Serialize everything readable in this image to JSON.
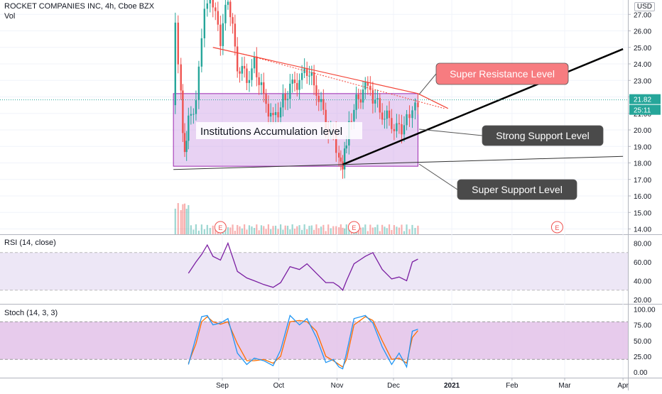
{
  "header": {
    "title": "ROCKET COMPANIES INC, 4h, Cboe BZX",
    "vol_label": "Vol",
    "currency": "USD"
  },
  "rsi": {
    "label": "RSI (14, close)",
    "ticks": [
      "80.00",
      "60.00",
      "40.00",
      "20.00"
    ]
  },
  "stoch": {
    "label": "Stoch (14, 3, 3)",
    "ticks": [
      "100.00",
      "75.00",
      "50.00",
      "25.00",
      "0.00"
    ]
  },
  "price_axis": {
    "ticks": [
      "27.00",
      "26.00",
      "25.00",
      "24.00",
      "23.00",
      "22.00",
      "21.00",
      "20.00",
      "19.00",
      "18.00",
      "17.00",
      "16.00",
      "15.00",
      "14.00"
    ],
    "last_price": "21.82",
    "countdown": "25:11"
  },
  "x_axis": {
    "labels": [
      "Sep",
      "Oct",
      "Nov",
      "Dec",
      "2021",
      "Feb",
      "Mar",
      "Apr"
    ]
  },
  "annotations": {
    "super_resistance": "Super Resistance Level",
    "strong_support": "Strong Support Level",
    "super_support": "Super Support Level",
    "accumulation": "Institutions Accumulation level",
    "earnings_marker": "E"
  },
  "colors": {
    "up": "#26a69a",
    "down": "#ef5350",
    "rsi_line": "#7b1fa2",
    "rsi_band": "#ede7f6",
    "stoch_k": "#2196f3",
    "stoch_d": "#ff6d00",
    "stoch_band": "#e1bee7",
    "accumulation_box": "#d1a6e8",
    "resistance": "#f44336",
    "callout_red": "#f77c80",
    "callout_dark": "#4a4a4a",
    "last_price_bg": "#26a69a"
  },
  "chart_data": [
    {
      "type": "candlestick",
      "title": "ROCKET COMPANIES INC, 4h, Cboe BZX",
      "x_labels": [
        "Sep",
        "Oct",
        "Nov",
        "Dec",
        "2021",
        "Feb",
        "Mar",
        "Apr"
      ],
      "y_ticks": [
        14,
        15,
        16,
        17,
        18,
        19,
        20,
        21,
        22,
        23,
        24,
        25,
        26,
        27
      ],
      "last_price": 21.82,
      "close_path": [
        {
          "x": "Aug 6",
          "y": 21.5
        },
        {
          "x": "Aug 7",
          "y": 26.5
        },
        {
          "x": "Aug 10",
          "y": 22.0
        },
        {
          "x": "Aug 12",
          "y": 18.5
        },
        {
          "x": "Aug 14",
          "y": 21.0
        },
        {
          "x": "Aug 18",
          "y": 21.5
        },
        {
          "x": "Aug 21",
          "y": 26.0
        },
        {
          "x": "Aug 24",
          "y": 28.0
        },
        {
          "x": "Aug 27",
          "y": 27.5
        },
        {
          "x": "Aug 31",
          "y": 25.5
        },
        {
          "x": "Sep 4",
          "y": 28.0
        },
        {
          "x": "Sep 9",
          "y": 24.0
        },
        {
          "x": "Sep 14",
          "y": 23.2
        },
        {
          "x": "Sep 18",
          "y": 24.0
        },
        {
          "x": "Sep 23",
          "y": 22.0
        },
        {
          "x": "Sep 28",
          "y": 20.5
        },
        {
          "x": "Oct 2",
          "y": 21.5
        },
        {
          "x": "Oct 7",
          "y": 22.5
        },
        {
          "x": "Oct 12",
          "y": 23.0
        },
        {
          "x": "Oct 16",
          "y": 23.6
        },
        {
          "x": "Oct 21",
          "y": 22.5
        },
        {
          "x": "Oct 26",
          "y": 20.5
        },
        {
          "x": "Oct 30",
          "y": 19.5
        },
        {
          "x": "Nov 2",
          "y": 18.5
        },
        {
          "x": "Nov 4",
          "y": 18.0
        },
        {
          "x": "Nov 6",
          "y": 19.5
        },
        {
          "x": "Nov 10",
          "y": 21.5
        },
        {
          "x": "Nov 16",
          "y": 22.5
        },
        {
          "x": "Nov 20",
          "y": 22.0
        },
        {
          "x": "Nov 25",
          "y": 21.0
        },
        {
          "x": "Nov 30",
          "y": 20.5
        },
        {
          "x": "Dec 4",
          "y": 20.0
        },
        {
          "x": "Dec 8",
          "y": 20.5
        },
        {
          "x": "Dec 11",
          "y": 21.5
        },
        {
          "x": "Dec 14",
          "y": 21.82
        }
      ],
      "annotations": [
        {
          "label": "Super Resistance Level",
          "type": "descending trendline",
          "from": {
            "x": "Aug 27",
            "y": 25.0
          },
          "to": {
            "x": "Dec 14",
            "y": 22.2
          }
        },
        {
          "label": "Strong Support Level",
          "type": "ascending trendline",
          "from": {
            "x": "Nov 4",
            "y": 17.9
          },
          "to": {
            "x": "Apr",
            "y": 24.9
          }
        },
        {
          "label": "Super Support Level",
          "type": "trendline",
          "from": {
            "x": "Aug 6",
            "y": 17.6
          },
          "to": {
            "x": "Apr",
            "y": 18.4
          }
        },
        {
          "label": "Institutions Accumulation level",
          "type": "box",
          "x_range": [
            "Aug 6",
            "Dec 14"
          ],
          "y_range": [
            17.8,
            22.2
          ]
        }
      ],
      "earnings_markers": [
        "Aug 31",
        "Nov 10",
        "Feb 25"
      ]
    },
    {
      "type": "line",
      "title": "RSI (14, close)",
      "y_ticks": [
        20,
        40,
        60,
        80
      ],
      "bands": [
        30,
        70
      ],
      "series": [
        {
          "name": "RSI (14, close)",
          "points": [
            {
              "x": "Aug 14",
              "y": 48
            },
            {
              "x": "Aug 18",
              "y": 60
            },
            {
              "x": "Aug 21",
              "y": 68
            },
            {
              "x": "Aug 24",
              "y": 78
            },
            {
              "x": "Aug 27",
              "y": 66
            },
            {
              "x": "Aug 31",
              "y": 62
            },
            {
              "x": "Sep 4",
              "y": 80
            },
            {
              "x": "Sep 9",
              "y": 50
            },
            {
              "x": "Sep 14",
              "y": 43
            },
            {
              "x": "Sep 18",
              "y": 40
            },
            {
              "x": "Sep 23",
              "y": 36
            },
            {
              "x": "Sep 28",
              "y": 33
            },
            {
              "x": "Oct 2",
              "y": 38
            },
            {
              "x": "Oct 7",
              "y": 55
            },
            {
              "x": "Oct 12",
              "y": 52
            },
            {
              "x": "Oct 16",
              "y": 58
            },
            {
              "x": "Oct 21",
              "y": 48
            },
            {
              "x": "Oct 26",
              "y": 38
            },
            {
              "x": "Oct 30",
              "y": 38
            },
            {
              "x": "Nov 2",
              "y": 34
            },
            {
              "x": "Nov 4",
              "y": 30
            },
            {
              "x": "Nov 6",
              "y": 40
            },
            {
              "x": "Nov 10",
              "y": 58
            },
            {
              "x": "Nov 16",
              "y": 66
            },
            {
              "x": "Nov 20",
              "y": 70
            },
            {
              "x": "Nov 25",
              "y": 52
            },
            {
              "x": "Nov 30",
              "y": 42
            },
            {
              "x": "Dec 4",
              "y": 44
            },
            {
              "x": "Dec 8",
              "y": 40
            },
            {
              "x": "Dec 11",
              "y": 60
            },
            {
              "x": "Dec 14",
              "y": 63
            }
          ]
        }
      ]
    },
    {
      "type": "line",
      "title": "Stoch (14, 3, 3)",
      "y_ticks": [
        0,
        25,
        50,
        75,
        100
      ],
      "bands": [
        20,
        80
      ],
      "series": [
        {
          "name": "%K",
          "points": [
            {
              "x": "Aug 14",
              "y": 12
            },
            {
              "x": "Aug 18",
              "y": 55
            },
            {
              "x": "Aug 21",
              "y": 88
            },
            {
              "x": "Aug 24",
              "y": 90
            },
            {
              "x": "Aug 27",
              "y": 75
            },
            {
              "x": "Aug 31",
              "y": 78
            },
            {
              "x": "Sep 4",
              "y": 85
            },
            {
              "x": "Sep 9",
              "y": 30
            },
            {
              "x": "Sep 14",
              "y": 12
            },
            {
              "x": "Sep 18",
              "y": 22
            },
            {
              "x": "Sep 23",
              "y": 18
            },
            {
              "x": "Sep 28",
              "y": 10
            },
            {
              "x": "Oct 2",
              "y": 35
            },
            {
              "x": "Oct 7",
              "y": 90
            },
            {
              "x": "Oct 12",
              "y": 75
            },
            {
              "x": "Oct 16",
              "y": 85
            },
            {
              "x": "Oct 21",
              "y": 55
            },
            {
              "x": "Oct 26",
              "y": 15
            },
            {
              "x": "Oct 30",
              "y": 20
            },
            {
              "x": "Nov 2",
              "y": 8
            },
            {
              "x": "Nov 4",
              "y": 5
            },
            {
              "x": "Nov 6",
              "y": 30
            },
            {
              "x": "Nov 10",
              "y": 85
            },
            {
              "x": "Nov 16",
              "y": 90
            },
            {
              "x": "Nov 20",
              "y": 78
            },
            {
              "x": "Nov 25",
              "y": 40
            },
            {
              "x": "Nov 30",
              "y": 12
            },
            {
              "x": "Dec 4",
              "y": 30
            },
            {
              "x": "Dec 8",
              "y": 8
            },
            {
              "x": "Dec 11",
              "y": 65
            },
            {
              "x": "Dec 14",
              "y": 68
            }
          ]
        },
        {
          "name": "%D",
          "points": [
            {
              "x": "Aug 14",
              "y": 14
            },
            {
              "x": "Aug 18",
              "y": 45
            },
            {
              "x": "Aug 21",
              "y": 80
            },
            {
              "x": "Aug 24",
              "y": 88
            },
            {
              "x": "Aug 27",
              "y": 80
            },
            {
              "x": "Aug 31",
              "y": 76
            },
            {
              "x": "Sep 4",
              "y": 80
            },
            {
              "x": "Sep 9",
              "y": 45
            },
            {
              "x": "Sep 14",
              "y": 18
            },
            {
              "x": "Sep 18",
              "y": 18
            },
            {
              "x": "Sep 23",
              "y": 20
            },
            {
              "x": "Sep 28",
              "y": 14
            },
            {
              "x": "Oct 2",
              "y": 25
            },
            {
              "x": "Oct 7",
              "y": 80
            },
            {
              "x": "Oct 12",
              "y": 82
            },
            {
              "x": "Oct 16",
              "y": 80
            },
            {
              "x": "Oct 21",
              "y": 65
            },
            {
              "x": "Oct 26",
              "y": 25
            },
            {
              "x": "Oct 30",
              "y": 18
            },
            {
              "x": "Nov 2",
              "y": 12
            },
            {
              "x": "Nov 4",
              "y": 8
            },
            {
              "x": "Nov 6",
              "y": 20
            },
            {
              "x": "Nov 10",
              "y": 75
            },
            {
              "x": "Nov 16",
              "y": 88
            },
            {
              "x": "Nov 20",
              "y": 82
            },
            {
              "x": "Nov 25",
              "y": 50
            },
            {
              "x": "Nov 30",
              "y": 20
            },
            {
              "x": "Dec 4",
              "y": 22
            },
            {
              "x": "Dec 8",
              "y": 14
            },
            {
              "x": "Dec 11",
              "y": 55
            },
            {
              "x": "Dec 14",
              "y": 66
            }
          ]
        }
      ]
    }
  ]
}
